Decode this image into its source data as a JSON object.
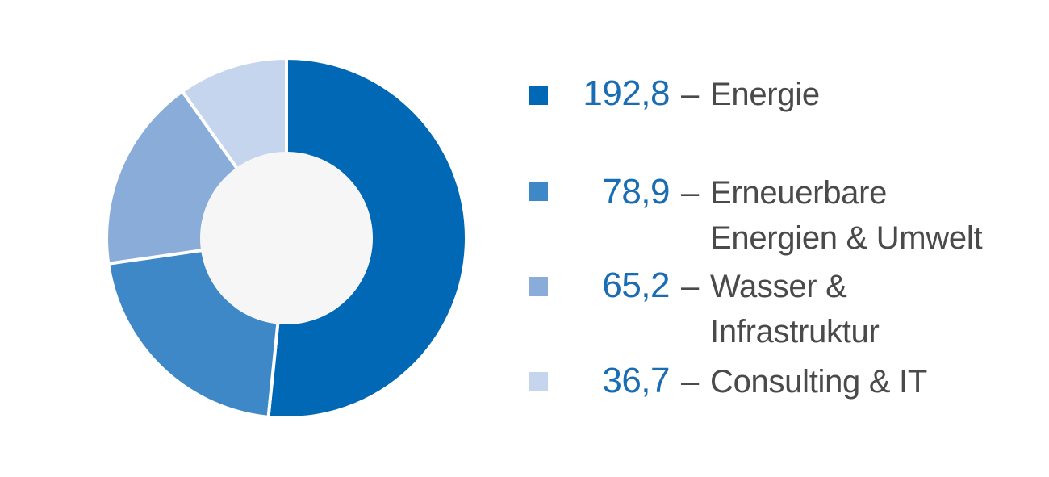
{
  "chart_data": {
    "type": "pie",
    "donut": true,
    "categories": [
      "Energie",
      "Erneuerbare Energien & Umwelt",
      "Wasser & Infrastruktur",
      "Consulting & IT"
    ],
    "values": [
      192.8,
      78.9,
      65.2,
      36.7
    ],
    "value_labels": [
      "192,8",
      "78,9",
      "65,2",
      "36,7"
    ],
    "label_lines": [
      [
        "Energie"
      ],
      [
        "Erneuerbare",
        "Energien & Umwelt"
      ],
      [
        "Wasser &",
        "Infrastruktur"
      ],
      [
        "Consulting & IT"
      ]
    ],
    "separator": "–",
    "colors": [
      "#0068b4",
      "#3f88c7",
      "#8aacd9",
      "#c6d5ee"
    ],
    "center_color": "#f6f6f6",
    "value_color": "#1b6db3",
    "text_color": "#4a4a4a",
    "legend_position": "right"
  }
}
